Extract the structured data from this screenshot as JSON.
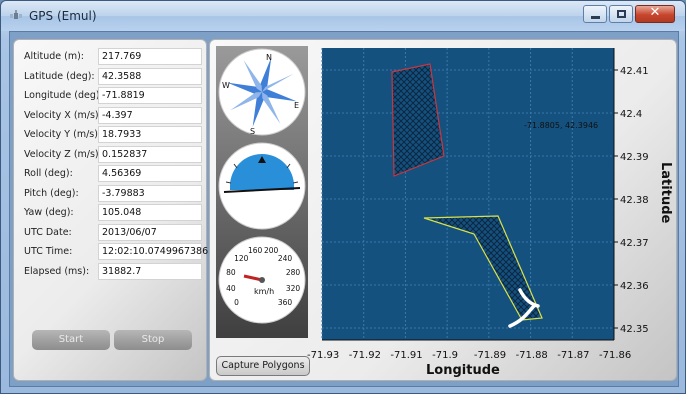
{
  "window": {
    "title": "GPS (Emul)"
  },
  "fields": [
    {
      "label": "Altitude (m):",
      "value": "217.769"
    },
    {
      "label": "Latitude (deg):",
      "value": "42.3588"
    },
    {
      "label": "Longitude (deg):",
      "value": "-71.8819"
    },
    {
      "label": "Velocity X (m/s):",
      "value": "-4.397"
    },
    {
      "label": "Velocity Y (m/s):",
      "value": "18.7933"
    },
    {
      "label": "Velocity Z (m/s):",
      "value": "0.152837"
    },
    {
      "label": "Roll (deg):",
      "value": "4.56369"
    },
    {
      "label": "Pitch (deg):",
      "value": "-3.79883"
    },
    {
      "label": "Yaw (deg):",
      "value": "105.048"
    },
    {
      "label": "UTC Date:",
      "value": "2013/06/07"
    },
    {
      "label": "UTC Time:",
      "value": "12:02:10.0749967386"
    },
    {
      "label": "Elapsed (ms):",
      "value": "31882.7"
    }
  ],
  "buttons": {
    "start": "Start",
    "stop": "Stop",
    "capture": "Capture Polygons"
  },
  "compass": {
    "n": "N",
    "e": "E",
    "s": "S",
    "w": "W"
  },
  "speedometer": {
    "unit": "km/h",
    "ticks": [
      "0",
      "40",
      "80",
      "120",
      "160",
      "200",
      "240",
      "280",
      "320",
      "360"
    ]
  },
  "map": {
    "xlabel": "Longitude",
    "ylabel": "Latitude",
    "x_ticks": [
      "-71.93",
      "-71.92",
      "-71.91",
      "-71.9",
      "-71.89",
      "-71.88",
      "-71.87",
      "-71.86"
    ],
    "y_ticks": [
      "42.41",
      "42.4",
      "42.39",
      "42.38",
      "42.37",
      "42.36",
      "42.35"
    ],
    "cursor_readout": "-71.8805, 42.3946",
    "colors": {
      "background": "#14517f",
      "polygon1_border": "#c8363e",
      "polygon2_border": "#d9e24a",
      "track": "#ffffff"
    }
  }
}
